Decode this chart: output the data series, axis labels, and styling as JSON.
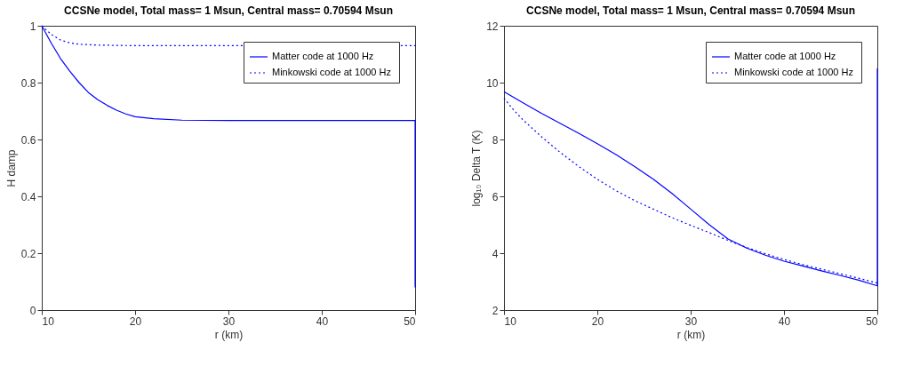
{
  "chart_data": [
    {
      "type": "line",
      "title": "CCSNe model, Total mass= 1 Msun, Central mass= 0.70594 Msun",
      "xlabel": "r (km)",
      "ylabel": "H damp",
      "xlim": [
        10,
        50
      ],
      "xticks": [
        10,
        20,
        30,
        40,
        50
      ],
      "ylim": [
        0,
        1
      ],
      "yticks": [
        0,
        0.2,
        0.4,
        0.6,
        0.8,
        1
      ],
      "grid": false,
      "legend": "top right",
      "series": [
        {
          "name": "Matter code at  1000 Hz",
          "color": "#0000ff",
          "line_style": "solid",
          "x": [
            10,
            11,
            12,
            13,
            14,
            15,
            16,
            17,
            18,
            19,
            20,
            22,
            25,
            30,
            50,
            50
          ],
          "values": [
            1.0,
            0.94,
            0.885,
            0.84,
            0.8,
            0.765,
            0.74,
            0.72,
            0.703,
            0.69,
            0.68,
            0.673,
            0.668,
            0.667,
            0.667,
            0.08
          ]
        },
        {
          "name": "Minkowski code at  1000 Hz",
          "color": "#0000ff",
          "line_style": "dotted",
          "x": [
            10,
            11,
            12,
            13,
            14,
            16,
            20,
            50
          ],
          "values": [
            1.0,
            0.97,
            0.95,
            0.94,
            0.935,
            0.932,
            0.93,
            0.93
          ]
        }
      ]
    },
    {
      "type": "line",
      "title": "CCSNe model, Total mass= 1 Msun, Central mass= 0.70594 Msun",
      "xlabel": "r (km)",
      "ylabel": "log₁₀ Delta T (K)",
      "xlim": [
        10,
        50
      ],
      "xticks": [
        10,
        20,
        30,
        40,
        50
      ],
      "ylim": [
        2,
        12
      ],
      "yticks": [
        2,
        4,
        6,
        8,
        10,
        12
      ],
      "grid": false,
      "legend": "top right",
      "series": [
        {
          "name": "Matter code at  1000 Hz",
          "color": "#0000ff",
          "line_style": "solid",
          "x": [
            10,
            12,
            14,
            16,
            18,
            20,
            22,
            24,
            26,
            28,
            30,
            32,
            34,
            36,
            38,
            40,
            42,
            44,
            46,
            48,
            50,
            50
          ],
          "values": [
            9.68,
            9.3,
            8.92,
            8.57,
            8.22,
            7.85,
            7.47,
            7.05,
            6.6,
            6.1,
            5.55,
            5.0,
            4.5,
            4.18,
            3.93,
            3.72,
            3.55,
            3.38,
            3.22,
            3.05,
            2.85,
            10.5
          ]
        },
        {
          "name": "Minkowski code at  1000 Hz",
          "color": "#0000ff",
          "line_style": "dotted",
          "x": [
            10,
            11,
            12,
            14,
            16,
            18,
            20,
            22,
            24,
            26,
            28,
            30,
            32,
            34,
            36,
            38,
            40,
            42,
            44,
            46,
            48,
            50
          ],
          "values": [
            9.45,
            9.05,
            8.7,
            8.1,
            7.55,
            7.05,
            6.6,
            6.2,
            5.85,
            5.55,
            5.25,
            4.98,
            4.72,
            4.45,
            4.2,
            3.98,
            3.78,
            3.6,
            3.44,
            3.28,
            3.12,
            2.95
          ]
        }
      ]
    }
  ]
}
